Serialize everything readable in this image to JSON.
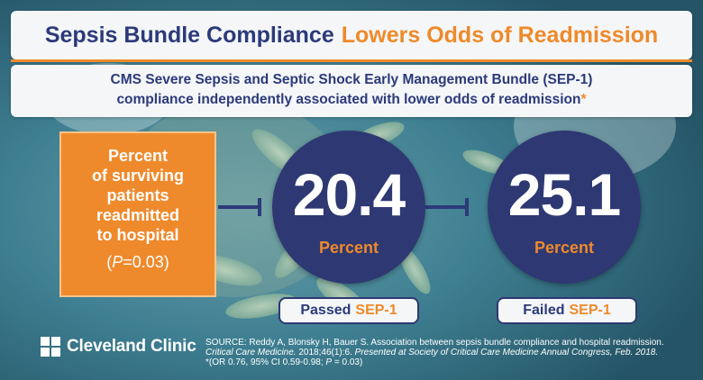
{
  "title": {
    "part1": "Sepsis Bundle Compliance",
    "part2": "Lowers Odds of Readmission"
  },
  "subtitle": {
    "line1": "CMS Severe Sepsis and Septic Shock Early Management Bundle (SEP-1)",
    "line2": "compliance independently associated with lower odds of readmission",
    "star": "*"
  },
  "metric": {
    "line1": "Percent",
    "line2": "of surviving",
    "line3": "patients",
    "line4": "readmitted",
    "line5": "to hospital",
    "p_symbol": "P",
    "p_rest": "=0.03"
  },
  "passed": {
    "value": "20.4",
    "unit": "Percent",
    "label_prefix": "Passed",
    "label_suffix": "SEP-1"
  },
  "failed": {
    "value": "25.1",
    "unit": "Percent",
    "label_prefix": "Failed",
    "label_suffix": "SEP-1"
  },
  "brand": {
    "name": "Cleveland Clinic"
  },
  "source": {
    "label": "SOURCE:",
    "authors": "Reddy A, Blonsky H, Bauer S. Association between sepsis bundle compliance and hospital readmission.",
    "journal": "Critical Care Medicine.",
    "citation": "2018;46(1):6.",
    "presented": "Presented at Society of Critical Care Medicine Annual Congress, Feb. 2018.",
    "footnote": "*(OR 0.76, 95% CI 0.59-0.98; ",
    "footnote_p": "P",
    "footnote_end": " = 0.03)"
  },
  "colors": {
    "navy": "#2c3a7a",
    "orange": "#ee8a2a",
    "background": "#2f6f84",
    "panel": "#f4f6f8"
  }
}
